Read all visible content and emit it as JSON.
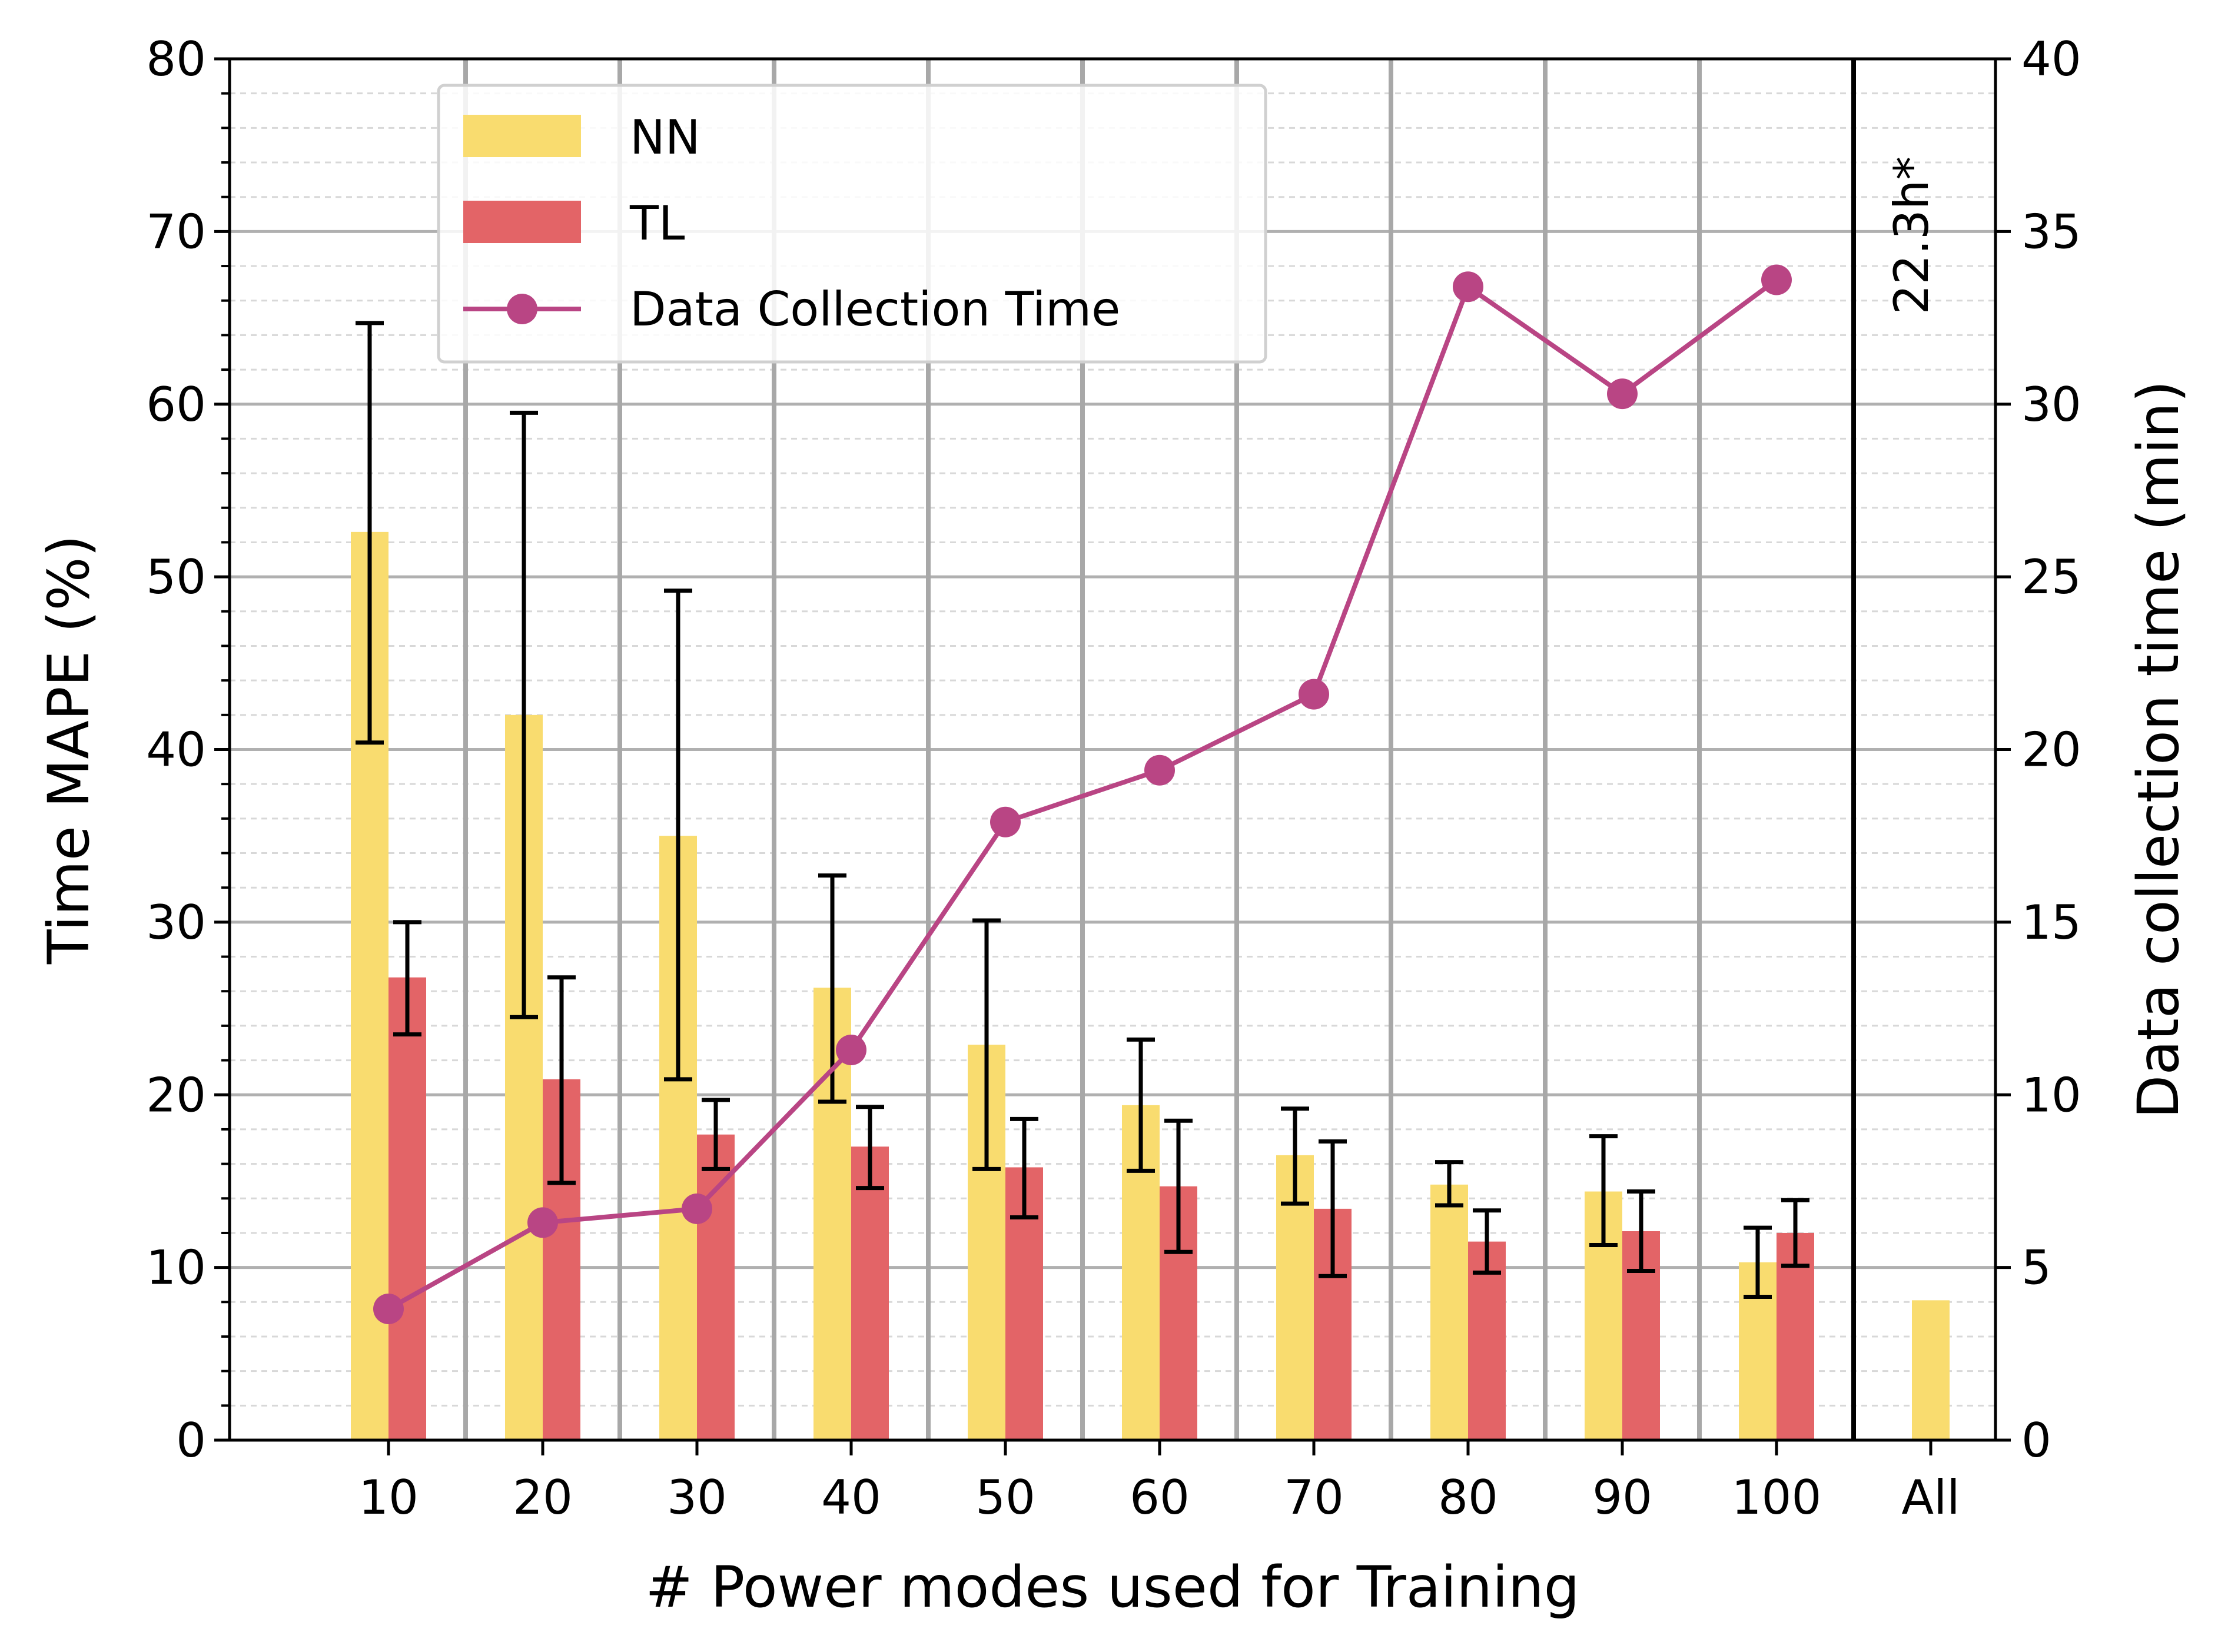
{
  "chart_data": {
    "type": "bar",
    "xlabel": "# Power modes used for Training",
    "ylabel": "Time MAPE (%)",
    "y2label": "Data collection time (min)",
    "categories": [
      "10",
      "20",
      "30",
      "40",
      "50",
      "60",
      "70",
      "80",
      "90",
      "100",
      "All"
    ],
    "ylim": [
      0,
      80
    ],
    "y2lim": [
      0,
      40
    ],
    "yticks": [
      "0",
      "10",
      "20",
      "30",
      "40",
      "50",
      "60",
      "70",
      "80"
    ],
    "y2ticks": [
      "0",
      "5",
      "10",
      "15",
      "20",
      "25",
      "30",
      "35",
      "40"
    ],
    "series": [
      {
        "name": "NN",
        "kind": "bar",
        "axis": "left",
        "color": "#f9dc6f",
        "values": [
          52.6,
          42.0,
          35.0,
          26.2,
          22.9,
          19.4,
          16.5,
          14.8,
          14.4,
          10.3,
          8.1
        ],
        "error_low": [
          40.4,
          24.5,
          20.9,
          19.6,
          15.7,
          15.6,
          13.7,
          13.6,
          11.3,
          8.3,
          null
        ],
        "error_high": [
          64.7,
          59.5,
          49.2,
          32.7,
          30.1,
          23.2,
          19.2,
          16.1,
          17.6,
          12.3,
          null
        ]
      },
      {
        "name": "TL",
        "kind": "bar",
        "axis": "left",
        "color": "#e36467",
        "values": [
          26.8,
          20.9,
          17.7,
          17.0,
          15.8,
          14.7,
          13.4,
          11.5,
          12.1,
          12.0,
          null
        ],
        "error_low": [
          23.5,
          14.9,
          15.7,
          14.6,
          12.9,
          10.9,
          9.5,
          9.7,
          9.8,
          10.1,
          null
        ],
        "error_high": [
          30.0,
          26.8,
          19.7,
          19.3,
          18.6,
          18.5,
          17.3,
          13.3,
          14.4,
          13.9,
          null
        ]
      },
      {
        "name": "Data Collection Time",
        "kind": "line",
        "axis": "right",
        "color": "#b94584",
        "values": [
          3.8,
          6.3,
          6.7,
          11.3,
          17.9,
          19.4,
          21.6,
          33.4,
          30.3,
          33.6,
          null
        ]
      }
    ],
    "annotation": {
      "text": "22.3h*",
      "color": "#7f1a8a"
    },
    "legend_position": "top-left",
    "grid": true
  }
}
